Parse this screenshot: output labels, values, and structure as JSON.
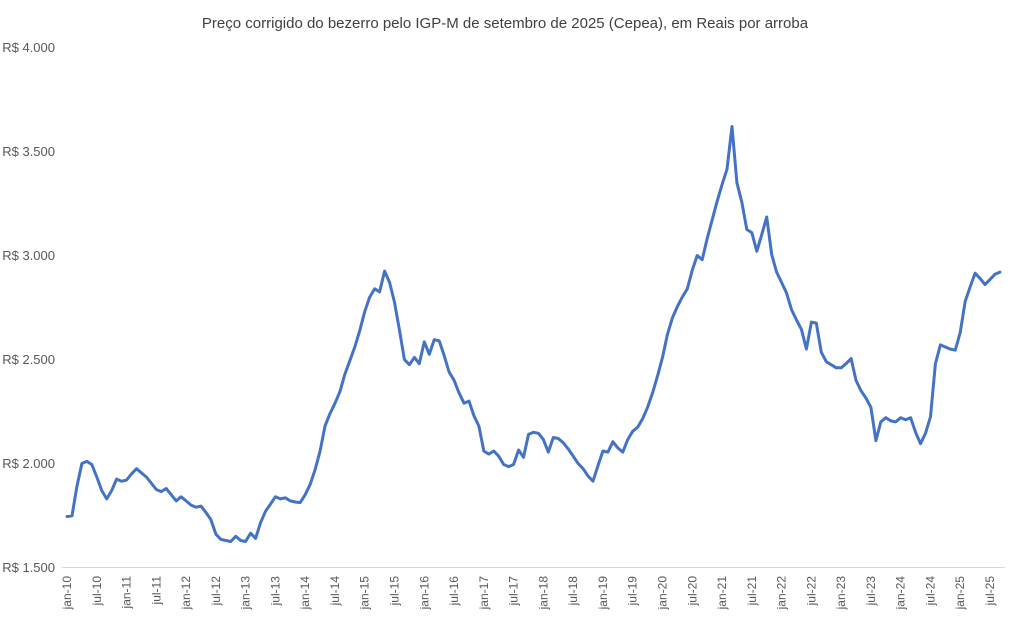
{
  "chart_data": {
    "type": "line",
    "title": "Preço corrigido do bezerro pelo IGP-M de setembro de 2025 (Cepea), em Reais por arroba",
    "frequency": "monthly",
    "x_start": "jan-10",
    "x_end": "set-25",
    "x_tick_labels": [
      "jan-10",
      "jul-10",
      "jan-11",
      "jul-11",
      "jan-12",
      "jul-12",
      "jan-13",
      "jul-13",
      "jan-14",
      "jul-14",
      "jan-15",
      "jul-15",
      "jan-16",
      "jul-16",
      "jan-17",
      "jul-17",
      "jan-18",
      "jul-18",
      "jan-19",
      "jul-19",
      "jan-20",
      "jul-20",
      "jan-21",
      "jul-21",
      "jan-22",
      "jul-22",
      "jan-23",
      "jul-23",
      "jan-24",
      "jul-24",
      "jan-25",
      "jul-25"
    ],
    "y_tick_labels": [
      "R$ 1.500",
      "R$ 2.000",
      "R$ 2.500",
      "R$ 3.000",
      "R$ 3.500",
      "R$ 4.000"
    ],
    "ylim": [
      1500,
      4000
    ],
    "y_tick_step": 500,
    "grid": false,
    "legend": false,
    "background": "#FFFFFF",
    "text_color": "#595959",
    "axis_line_color": "#D9D9D9",
    "series": [
      {
        "name": "Preço corrigido do bezerro (R$ por arroba)",
        "color": "#4472C4",
        "values": [
          1745,
          1748,
          1890,
          2000,
          2010,
          1995,
          1935,
          1870,
          1830,
          1870,
          1925,
          1915,
          1920,
          1950,
          1975,
          1955,
          1935,
          1905,
          1875,
          1865,
          1880,
          1850,
          1820,
          1840,
          1820,
          1800,
          1790,
          1795,
          1765,
          1730,
          1660,
          1635,
          1630,
          1625,
          1650,
          1630,
          1625,
          1665,
          1640,
          1715,
          1770,
          1805,
          1840,
          1830,
          1835,
          1820,
          1815,
          1812,
          1850,
          1900,
          1970,
          2060,
          2180,
          2240,
          2290,
          2345,
          2430,
          2495,
          2560,
          2640,
          2730,
          2800,
          2840,
          2825,
          2925,
          2870,
          2775,
          2640,
          2500,
          2475,
          2510,
          2480,
          2585,
          2525,
          2595,
          2590,
          2520,
          2440,
          2400,
          2340,
          2290,
          2300,
          2230,
          2180,
          2060,
          2045,
          2060,
          2035,
          1995,
          1985,
          1995,
          2065,
          2030,
          2140,
          2150,
          2145,
          2115,
          2055,
          2125,
          2120,
          2100,
          2070,
          2035,
          2000,
          1975,
          1940,
          1915,
          1990,
          2060,
          2055,
          2105,
          2075,
          2055,
          2115,
          2155,
          2175,
          2215,
          2270,
          2340,
          2420,
          2510,
          2620,
          2700,
          2755,
          2800,
          2840,
          2930,
          3000,
          2980,
          3080,
          3170,
          3260,
          3340,
          3415,
          3620,
          3350,
          3255,
          3125,
          3110,
          3020,
          3100,
          3185,
          3005,
          2920,
          2870,
          2820,
          2740,
          2690,
          2645,
          2550,
          2680,
          2675,
          2535,
          2490,
          2475,
          2460,
          2460,
          2480,
          2505,
          2400,
          2350,
          2315,
          2270,
          2110,
          2200,
          2220,
          2205,
          2200,
          2220,
          2210,
          2220,
          2150,
          2095,
          2145,
          2225,
          2480,
          2570,
          2560,
          2550,
          2545,
          2630,
          2780,
          2850,
          2915,
          2890,
          2860,
          2885,
          2910,
          2920
        ]
      }
    ]
  }
}
